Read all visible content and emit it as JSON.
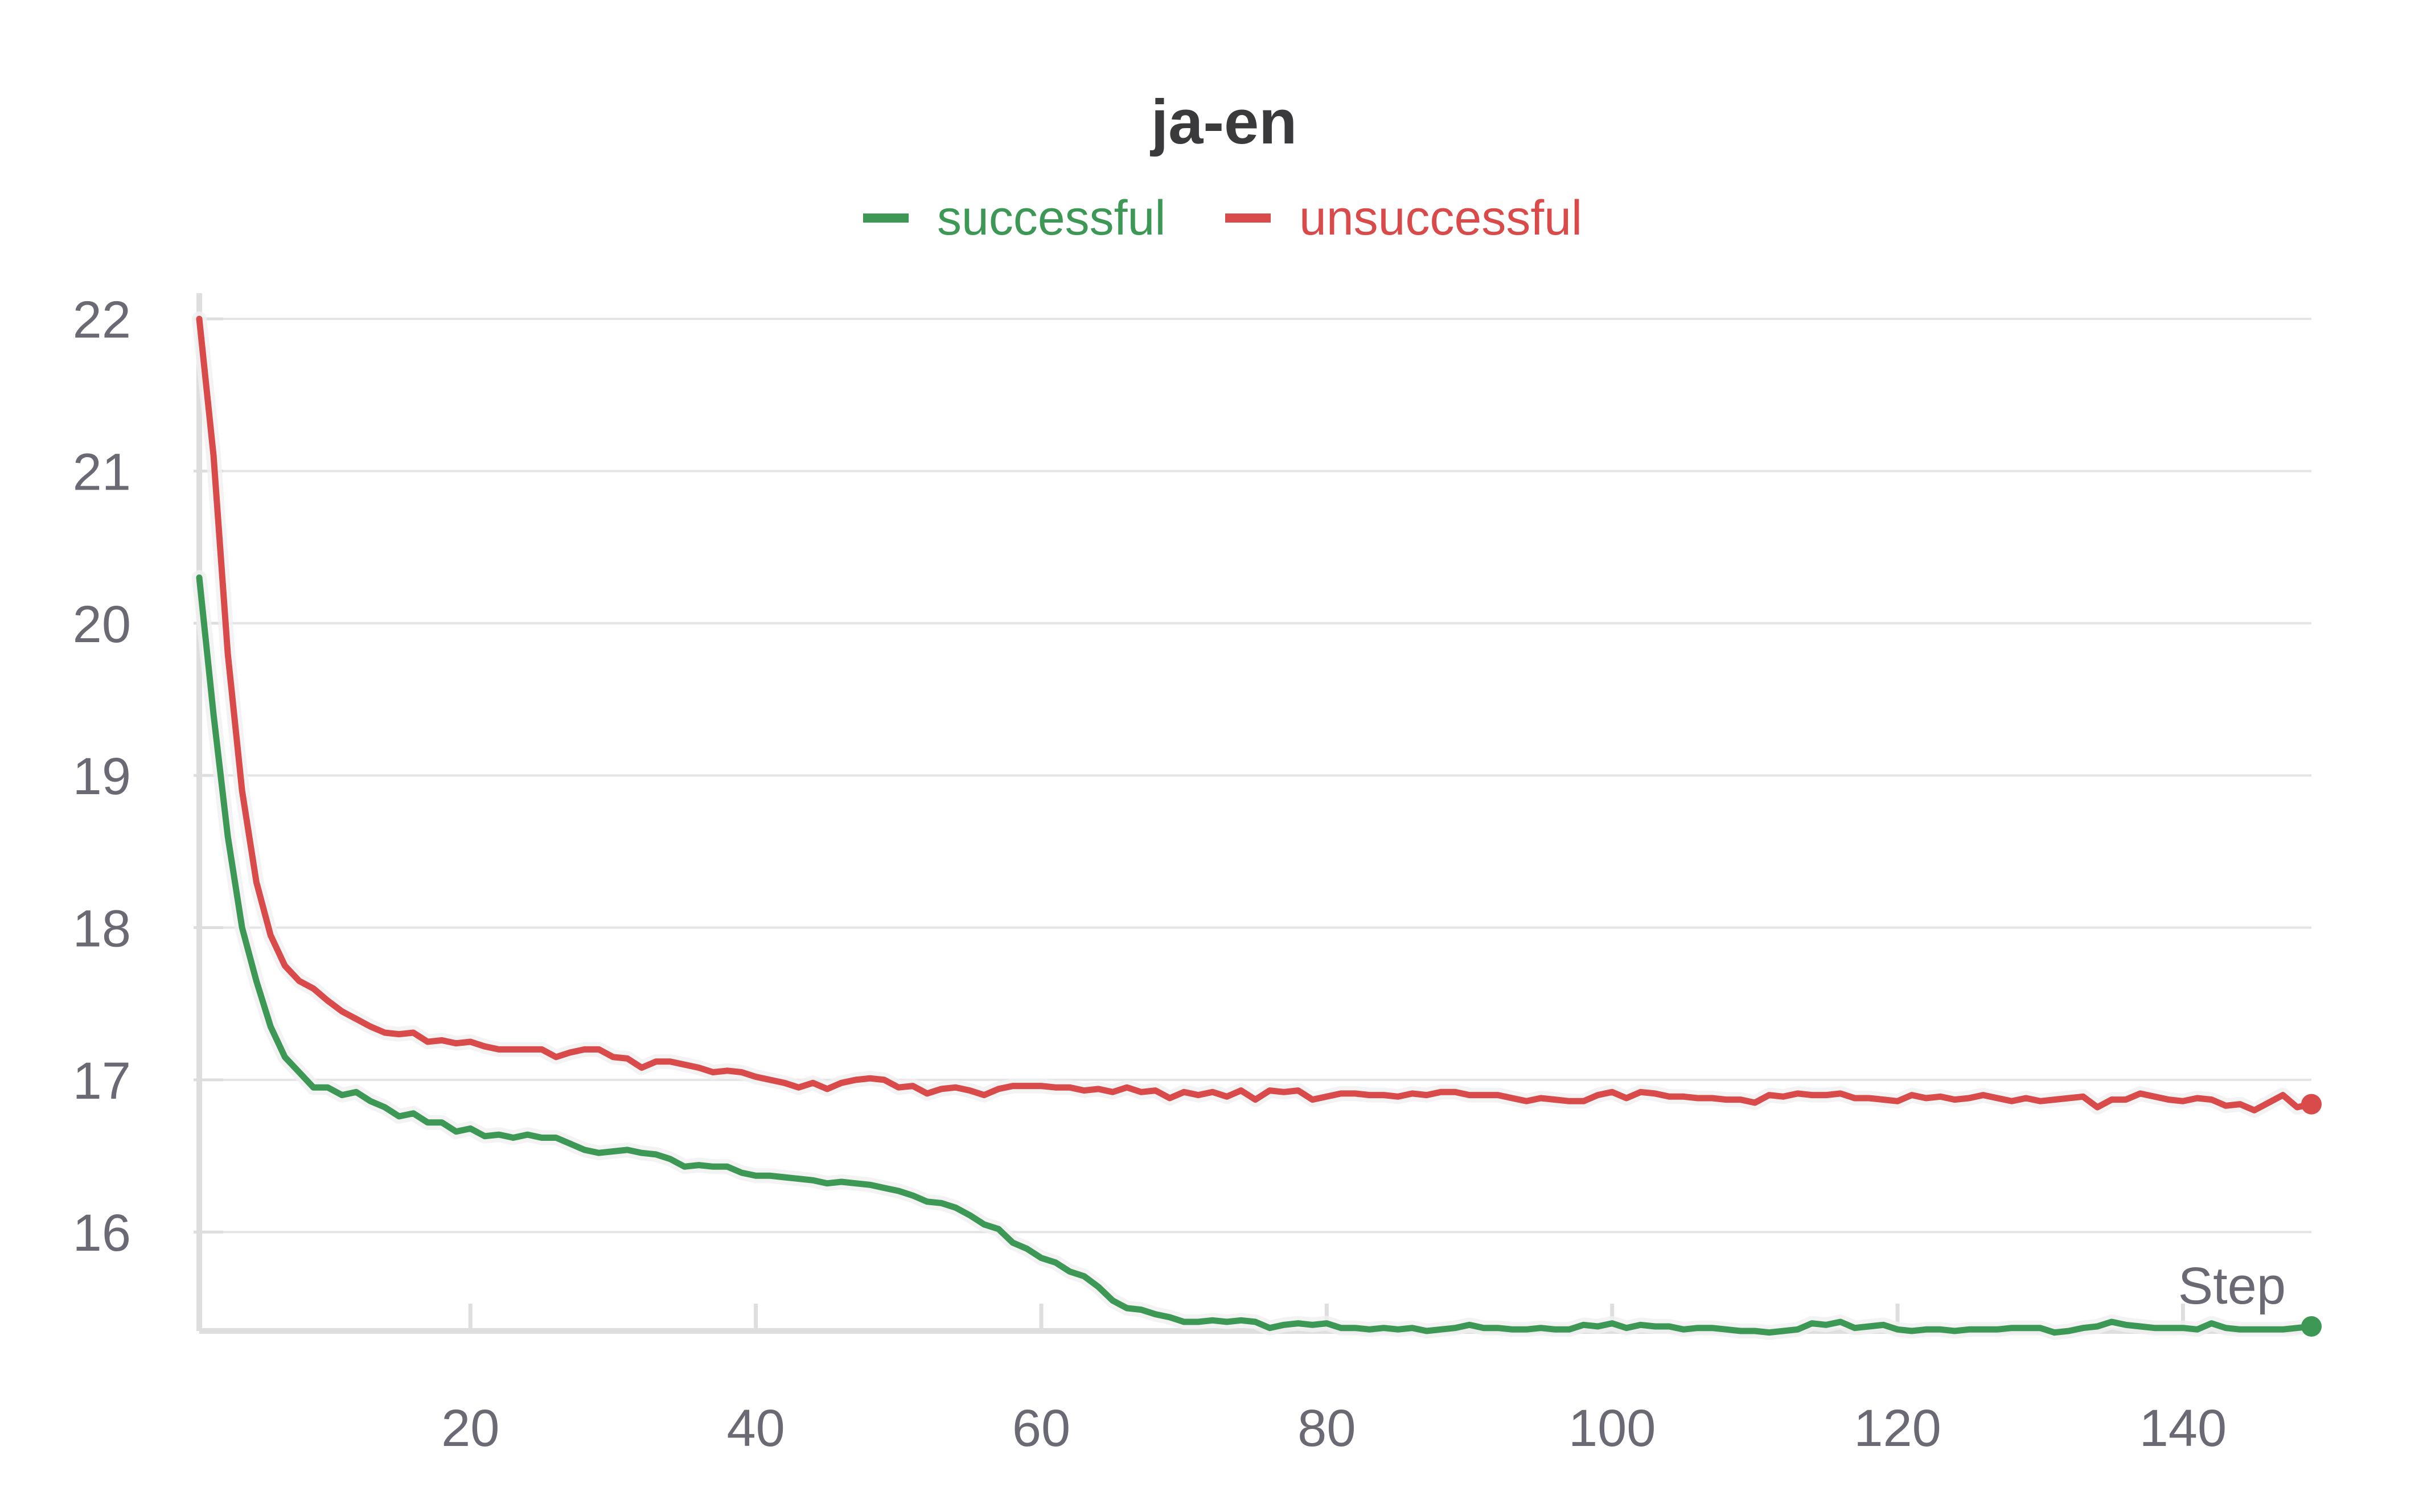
{
  "chart_data": {
    "type": "line",
    "title": "ja-en",
    "xlabel": "Step",
    "ylabel": "",
    "xlim": [
      1,
      149
    ],
    "ylim": [
      15.35,
      22.15
    ],
    "x_ticks": [
      20,
      40,
      60,
      80,
      100,
      120,
      140
    ],
    "y_ticks": [
      16,
      17,
      18,
      19,
      20,
      21,
      22
    ],
    "grid": true,
    "legend_position": "top-center",
    "colors": {
      "successful": "#3d9856",
      "unsuccessful": "#d94a4a",
      "grid": "#e4e4e6",
      "axis": "#dedede",
      "tick_text": "#6b6a74",
      "title": "#3a3a3c"
    },
    "series": [
      {
        "name": "successful",
        "color": "#3d9856",
        "x": [
          1,
          2,
          3,
          4,
          5,
          6,
          7,
          8,
          9,
          10,
          11,
          12,
          13,
          14,
          15,
          16,
          17,
          18,
          19,
          20,
          21,
          22,
          23,
          24,
          25,
          26,
          27,
          28,
          29,
          30,
          31,
          32,
          33,
          34,
          35,
          36,
          37,
          38,
          39,
          40,
          41,
          42,
          43,
          44,
          45,
          46,
          47,
          48,
          49,
          50,
          51,
          52,
          53,
          54,
          55,
          56,
          57,
          58,
          59,
          60,
          61,
          62,
          63,
          64,
          65,
          66,
          67,
          68,
          69,
          70,
          71,
          72,
          73,
          74,
          75,
          76,
          77,
          78,
          79,
          80,
          81,
          82,
          83,
          84,
          85,
          86,
          87,
          88,
          89,
          90,
          91,
          92,
          93,
          94,
          95,
          96,
          97,
          98,
          99,
          100,
          101,
          102,
          103,
          104,
          105,
          106,
          107,
          108,
          109,
          110,
          111,
          112,
          113,
          114,
          115,
          116,
          117,
          118,
          119,
          120,
          121,
          122,
          123,
          124,
          125,
          126,
          127,
          128,
          129,
          130,
          131,
          132,
          133,
          134,
          135,
          136,
          137,
          138,
          139,
          140,
          141,
          142,
          143,
          144,
          145,
          146,
          147,
          148,
          149
        ],
        "y": [
          20.3,
          19.4,
          18.6,
          18.0,
          17.65,
          17.35,
          17.15,
          17.05,
          16.95,
          16.95,
          16.9,
          16.92,
          16.86,
          16.82,
          16.76,
          16.78,
          16.72,
          16.72,
          16.66,
          16.68,
          16.63,
          16.64,
          16.62,
          16.64,
          16.62,
          16.62,
          16.58,
          16.54,
          16.52,
          16.53,
          16.54,
          16.52,
          16.51,
          16.48,
          16.43,
          16.44,
          16.43,
          16.43,
          16.39,
          16.37,
          16.37,
          16.36,
          16.35,
          16.34,
          16.32,
          16.33,
          16.32,
          16.31,
          16.29,
          16.27,
          16.24,
          16.2,
          16.19,
          16.16,
          16.11,
          16.05,
          16.02,
          15.93,
          15.89,
          15.83,
          15.8,
          15.74,
          15.71,
          15.64,
          15.55,
          15.5,
          15.49,
          15.46,
          15.44,
          15.41,
          15.41,
          15.42,
          15.41,
          15.42,
          15.41,
          15.37,
          15.39,
          15.4,
          15.39,
          15.4,
          15.37,
          15.37,
          15.36,
          15.37,
          15.36,
          15.37,
          15.35,
          15.36,
          15.37,
          15.39,
          15.37,
          15.37,
          15.36,
          15.36,
          15.37,
          15.36,
          15.36,
          15.39,
          15.38,
          15.4,
          15.37,
          15.39,
          15.38,
          15.38,
          15.36,
          15.37,
          15.37,
          15.36,
          15.35,
          15.35,
          15.34,
          15.35,
          15.36,
          15.4,
          15.39,
          15.41,
          15.37,
          15.38,
          15.39,
          15.36,
          15.35,
          15.36,
          15.36,
          15.35,
          15.36,
          15.36,
          15.36,
          15.37,
          15.37,
          15.37,
          15.34,
          15.35,
          15.37,
          15.38,
          15.41,
          15.39,
          15.38,
          15.37,
          15.37,
          15.37,
          15.36,
          15.4,
          15.37,
          15.36,
          15.36,
          15.36,
          15.36,
          15.37,
          15.38
        ]
      },
      {
        "name": "unsuccessful",
        "color": "#d94a4a",
        "x": [
          1,
          2,
          3,
          4,
          5,
          6,
          7,
          8,
          9,
          10,
          11,
          12,
          13,
          14,
          15,
          16,
          17,
          18,
          19,
          20,
          21,
          22,
          23,
          24,
          25,
          26,
          27,
          28,
          29,
          30,
          31,
          32,
          33,
          34,
          35,
          36,
          37,
          38,
          39,
          40,
          41,
          42,
          43,
          44,
          45,
          46,
          47,
          48,
          49,
          50,
          51,
          52,
          53,
          54,
          55,
          56,
          57,
          58,
          59,
          60,
          61,
          62,
          63,
          64,
          65,
          66,
          67,
          68,
          69,
          70,
          71,
          72,
          73,
          74,
          75,
          76,
          77,
          78,
          79,
          80,
          81,
          82,
          83,
          84,
          85,
          86,
          87,
          88,
          89,
          90,
          91,
          92,
          93,
          94,
          95,
          96,
          97,
          98,
          99,
          100,
          101,
          102,
          103,
          104,
          105,
          106,
          107,
          108,
          109,
          110,
          111,
          112,
          113,
          114,
          115,
          116,
          117,
          118,
          119,
          120,
          121,
          122,
          123,
          124,
          125,
          126,
          127,
          128,
          129,
          130,
          131,
          132,
          133,
          134,
          135,
          136,
          137,
          138,
          139,
          140,
          141,
          142,
          143,
          144,
          145,
          146,
          147,
          148,
          149
        ],
        "y": [
          22.0,
          21.1,
          19.8,
          18.9,
          18.3,
          17.95,
          17.75,
          17.65,
          17.6,
          17.52,
          17.45,
          17.4,
          17.35,
          17.31,
          17.3,
          17.31,
          17.25,
          17.26,
          17.24,
          17.25,
          17.22,
          17.2,
          17.2,
          17.2,
          17.2,
          17.15,
          17.18,
          17.2,
          17.2,
          17.15,
          17.14,
          17.08,
          17.12,
          17.12,
          17.1,
          17.08,
          17.05,
          17.06,
          17.05,
          17.02,
          17.0,
          16.98,
          16.95,
          16.98,
          16.94,
          16.98,
          17.0,
          17.01,
          17.0,
          16.95,
          16.96,
          16.91,
          16.94,
          16.95,
          16.93,
          16.9,
          16.94,
          16.96,
          16.96,
          16.96,
          16.95,
          16.95,
          16.93,
          16.94,
          16.92,
          16.95,
          16.92,
          16.93,
          16.88,
          16.92,
          16.9,
          16.92,
          16.89,
          16.93,
          16.87,
          16.93,
          16.92,
          16.93,
          16.87,
          16.89,
          16.91,
          16.91,
          16.9,
          16.9,
          16.89,
          16.91,
          16.9,
          16.92,
          16.92,
          16.9,
          16.9,
          16.9,
          16.88,
          16.86,
          16.88,
          16.87,
          16.86,
          16.86,
          16.9,
          16.92,
          16.88,
          16.92,
          16.91,
          16.89,
          16.89,
          16.88,
          16.88,
          16.87,
          16.87,
          16.85,
          16.9,
          16.89,
          16.91,
          16.9,
          16.9,
          16.91,
          16.88,
          16.88,
          16.87,
          16.86,
          16.9,
          16.88,
          16.89,
          16.87,
          16.88,
          16.9,
          16.88,
          16.86,
          16.88,
          16.86,
          16.87,
          16.88,
          16.89,
          16.82,
          16.87,
          16.87,
          16.91,
          16.89,
          16.87,
          16.86,
          16.88,
          16.87,
          16.83,
          16.84,
          16.8,
          16.85,
          16.9,
          16.82,
          16.84
        ]
      }
    ]
  }
}
